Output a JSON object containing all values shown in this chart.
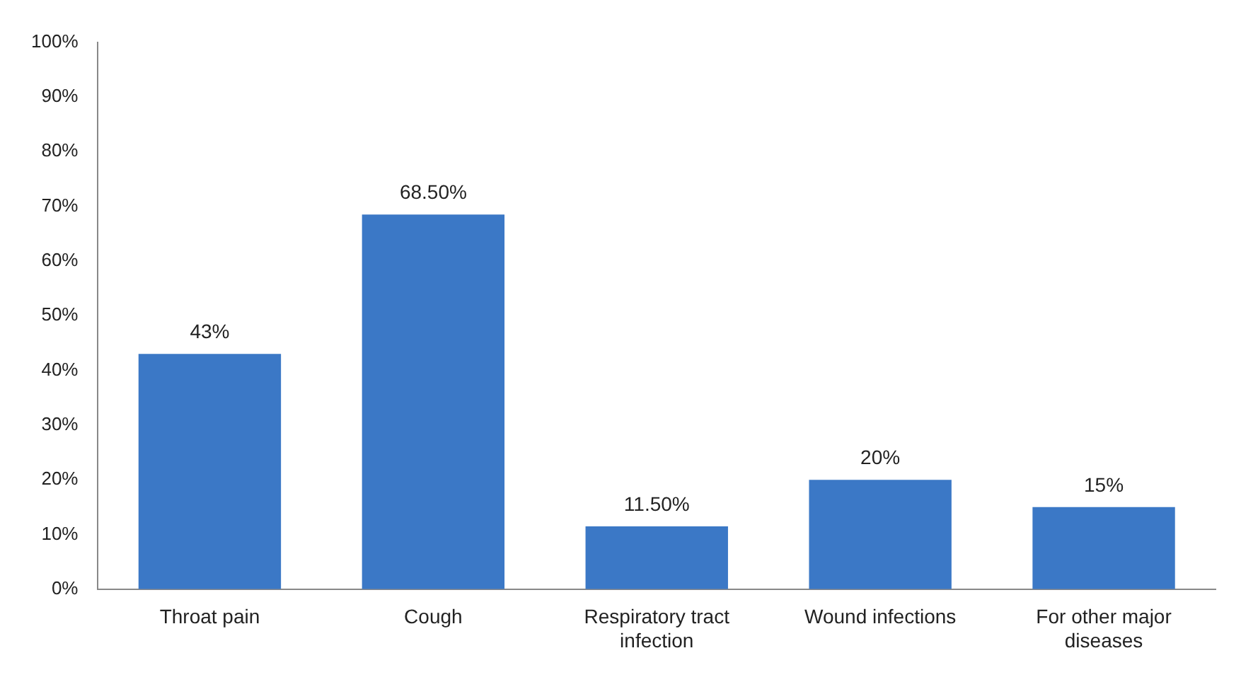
{
  "chart_data": {
    "type": "bar",
    "categories": [
      "Throat pain",
      "Cough",
      "Respiratory tract infection",
      "Wound infections",
      "For other major diseases"
    ],
    "values": [
      43,
      68.5,
      11.5,
      20,
      15
    ],
    "value_labels": [
      "43%",
      "68.50%",
      "11.50%",
      "20%",
      "15%"
    ],
    "color": "#3b78c6",
    "ylim": [
      0,
      100
    ],
    "yticks": [
      {
        "value": 0,
        "label": "0%"
      },
      {
        "value": 10,
        "label": "10%"
      },
      {
        "value": 20,
        "label": "20%"
      },
      {
        "value": 30,
        "label": "30%"
      },
      {
        "value": 40,
        "label": "40%"
      },
      {
        "value": 50,
        "label": "50%"
      },
      {
        "value": 60,
        "label": "60%"
      },
      {
        "value": 70,
        "label": "70%"
      },
      {
        "value": 80,
        "label": "80%"
      },
      {
        "value": 90,
        "label": "90%"
      },
      {
        "value": 100,
        "label": "100%"
      }
    ],
    "grid": false,
    "legend": false
  }
}
